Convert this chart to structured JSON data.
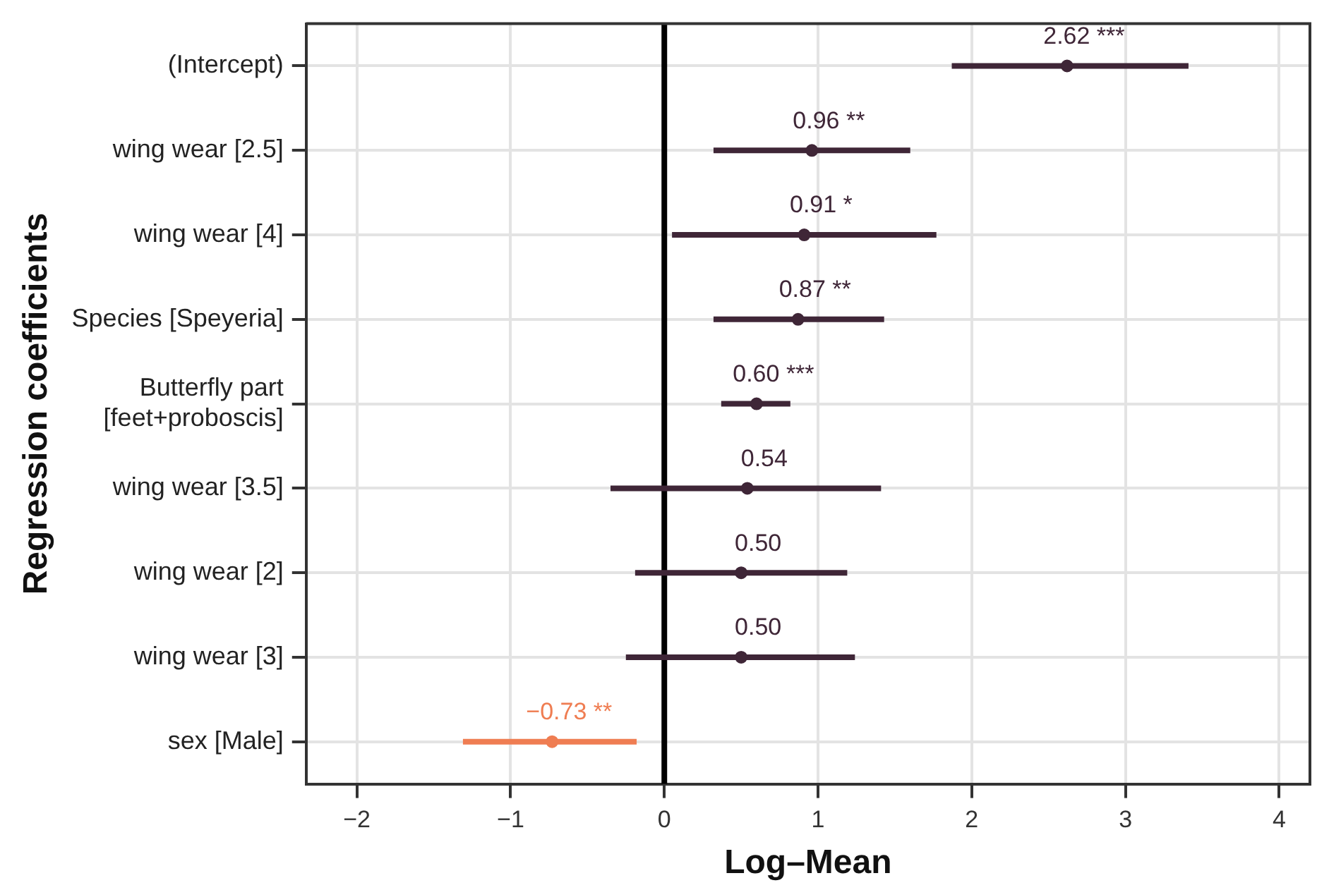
{
  "chart_data": {
    "type": "scatter",
    "orientation": "horizontal",
    "xlabel": "Log–Mean",
    "ylabel": "Regression coefficients",
    "categories": [
      "(Intercept)",
      "wing wear [2.5]",
      "wing wear [4]",
      "Species [Speyeria]",
      "Butterfly part [feet+proboscis]",
      "wing wear [3.5]",
      "wing wear [2]",
      "wing wear [3]",
      "sex [Male]"
    ],
    "values": [
      2.62,
      0.96,
      0.91,
      0.87,
      0.6,
      0.54,
      0.5,
      0.5,
      -0.73
    ],
    "errors": [
      [
        1.87,
        3.41
      ],
      [
        0.32,
        1.6
      ],
      [
        0.05,
        1.77
      ],
      [
        0.32,
        1.43
      ],
      [
        0.37,
        0.82
      ],
      [
        -0.35,
        1.41
      ],
      [
        -0.19,
        1.19
      ],
      [
        -0.25,
        1.24
      ],
      [
        -1.31,
        -0.18
      ]
    ],
    "colors": [
      "#3f2637",
      "#3f2637",
      "#3f2637",
      "#3f2637",
      "#3f2637",
      "#3f2637",
      "#3f2637",
      "#3f2637",
      "#ef7d52"
    ],
    "value_labels": [
      "2.62 ***",
      "0.96 **",
      "0.91 *",
      "0.87 **",
      "0.60 ***",
      "0.54",
      "0.50",
      "0.50",
      "−0.73 **"
    ],
    "xlim": [
      -2.33,
      4.2
    ],
    "xticks": [
      {
        "value": -2,
        "label": "−2"
      },
      {
        "value": -1,
        "label": "−1"
      },
      0,
      1,
      2,
      3,
      4
    ],
    "ref_lines": [
      {
        "axis": "x",
        "value": 0,
        "color": "#000000"
      }
    ],
    "grid": true,
    "legend": false,
    "marker": "circle"
  }
}
